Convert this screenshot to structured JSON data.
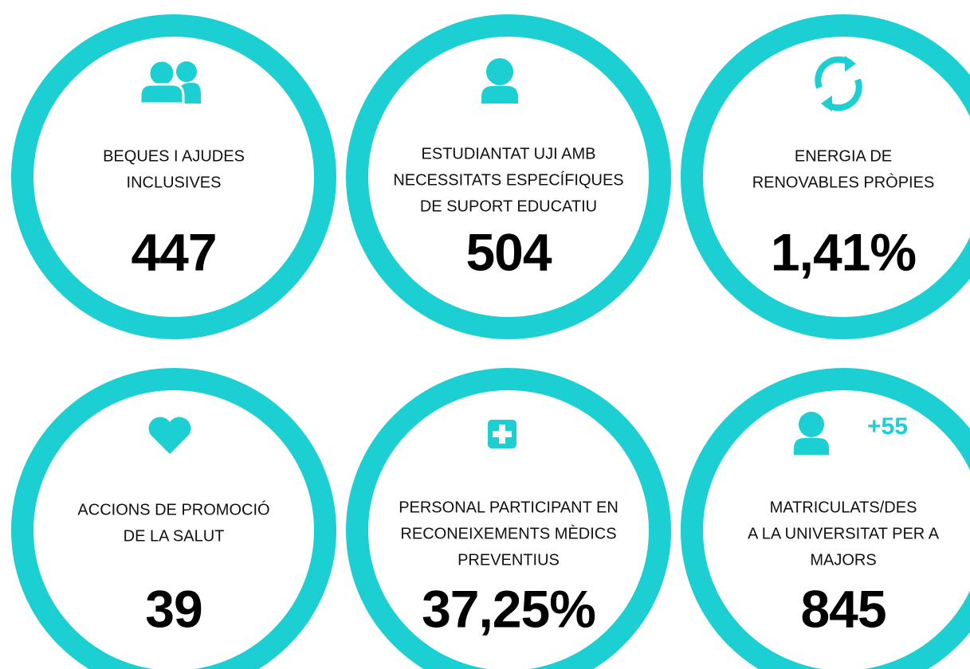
{
  "items": [
    {
      "label": [
        "BEQUES I AJUDES",
        "INCLUSIVES"
      ],
      "value": "447"
    },
    {
      "label": [
        "ESTUDIANTAT UJI AMB",
        "NECESSITATS ESPECÍFIQUES",
        "DE SUPORT EDUCATIU"
      ],
      "value": "504"
    },
    {
      "label": [
        "ENERGIA DE",
        "RENOVABLES PRÒPIES"
      ],
      "value": "1,41%"
    },
    {
      "label": [
        "ACCIONS DE PROMOCIÓ",
        "DE LA SALUT"
      ],
      "value": "39"
    },
    {
      "label": [
        "PERSONAL PARTICIPANT EN",
        "RECONEIXEMENTS MÈDICS",
        "PREVENTIUS"
      ],
      "value": "37,25%"
    },
    {
      "label": [
        "MATRICULATS/DES",
        "A LA UNIVERSITAT PER A",
        "MAJORS"
      ],
      "value": "845",
      "badge": "+55"
    }
  ]
}
